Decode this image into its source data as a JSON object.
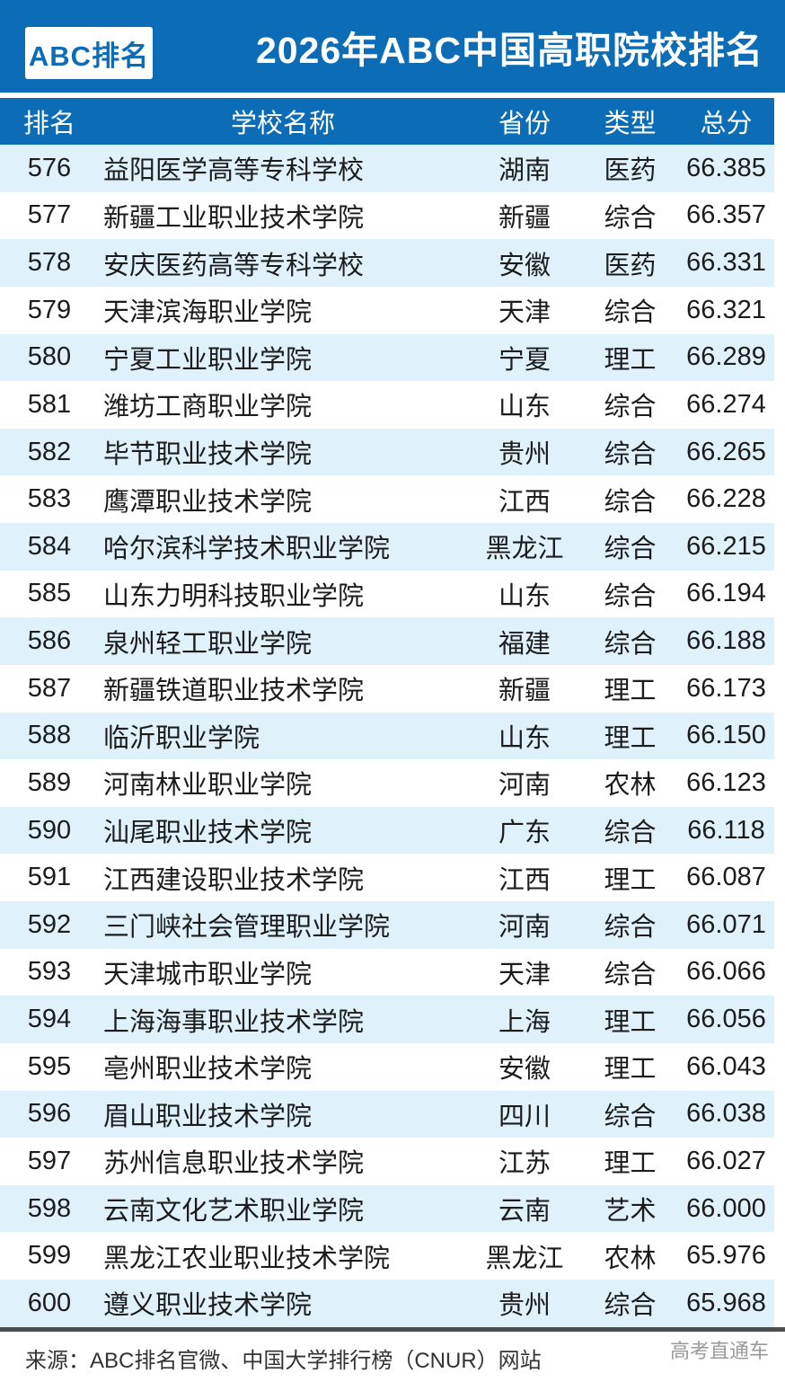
{
  "banner": {
    "logo": "ABC排名",
    "title": "2026年ABC中国高职院校排名"
  },
  "colors": {
    "primary_blue": "#0c6cb5",
    "row_alt_blue": "#dff2fb",
    "separator_gray": "#4e4e4e",
    "watermark_gray": "#9a9a9a"
  },
  "table": {
    "columns": {
      "rank": "排名",
      "name": "学校名称",
      "province": "省份",
      "type": "类型",
      "score": "总分"
    },
    "rows": [
      {
        "rank": "576",
        "name": "益阳医学高等专科学校",
        "province": "湖南",
        "type": "医药",
        "score": "66.385"
      },
      {
        "rank": "577",
        "name": "新疆工业职业技术学院",
        "province": "新疆",
        "type": "综合",
        "score": "66.357"
      },
      {
        "rank": "578",
        "name": "安庆医药高等专科学校",
        "province": "安徽",
        "type": "医药",
        "score": "66.331"
      },
      {
        "rank": "579",
        "name": "天津滨海职业学院",
        "province": "天津",
        "type": "综合",
        "score": "66.321"
      },
      {
        "rank": "580",
        "name": "宁夏工业职业学院",
        "province": "宁夏",
        "type": "理工",
        "score": "66.289"
      },
      {
        "rank": "581",
        "name": "潍坊工商职业学院",
        "province": "山东",
        "type": "综合",
        "score": "66.274"
      },
      {
        "rank": "582",
        "name": "毕节职业技术学院",
        "province": "贵州",
        "type": "综合",
        "score": "66.265"
      },
      {
        "rank": "583",
        "name": "鹰潭职业技术学院",
        "province": "江西",
        "type": "综合",
        "score": "66.228"
      },
      {
        "rank": "584",
        "name": "哈尔滨科学技术职业学院",
        "province": "黑龙江",
        "type": "综合",
        "score": "66.215"
      },
      {
        "rank": "585",
        "name": "山东力明科技职业学院",
        "province": "山东",
        "type": "综合",
        "score": "66.194"
      },
      {
        "rank": "586",
        "name": "泉州轻工职业学院",
        "province": "福建",
        "type": "综合",
        "score": "66.188"
      },
      {
        "rank": "587",
        "name": "新疆铁道职业技术学院",
        "province": "新疆",
        "type": "理工",
        "score": "66.173"
      },
      {
        "rank": "588",
        "name": "临沂职业学院",
        "province": "山东",
        "type": "理工",
        "score": "66.150"
      },
      {
        "rank": "589",
        "name": "河南林业职业学院",
        "province": "河南",
        "type": "农林",
        "score": "66.123"
      },
      {
        "rank": "590",
        "name": "汕尾职业技术学院",
        "province": "广东",
        "type": "综合",
        "score": "66.118"
      },
      {
        "rank": "591",
        "name": "江西建设职业技术学院",
        "province": "江西",
        "type": "理工",
        "score": "66.087"
      },
      {
        "rank": "592",
        "name": "三门峡社会管理职业学院",
        "province": "河南",
        "type": "综合",
        "score": "66.071"
      },
      {
        "rank": "593",
        "name": "天津城市职业学院",
        "province": "天津",
        "type": "综合",
        "score": "66.066"
      },
      {
        "rank": "594",
        "name": "上海海事职业技术学院",
        "province": "上海",
        "type": "理工",
        "score": "66.056"
      },
      {
        "rank": "595",
        "name": "亳州职业技术学院",
        "province": "安徽",
        "type": "理工",
        "score": "66.043"
      },
      {
        "rank": "596",
        "name": "眉山职业技术学院",
        "province": "四川",
        "type": "综合",
        "score": "66.038"
      },
      {
        "rank": "597",
        "name": "苏州信息职业技术学院",
        "province": "江苏",
        "type": "理工",
        "score": "66.027"
      },
      {
        "rank": "598",
        "name": "云南文化艺术职业学院",
        "province": "云南",
        "type": "艺术",
        "score": "66.000"
      },
      {
        "rank": "599",
        "name": "黑龙江农业职业技术学院",
        "province": "黑龙江",
        "type": "农林",
        "score": "65.976"
      },
      {
        "rank": "600",
        "name": "遵义职业技术学院",
        "province": "贵州",
        "type": "综合",
        "score": "65.968"
      }
    ]
  },
  "footer": {
    "source": "来源：ABC排名官微、中国大学排行榜（CNUR）网站",
    "watermark": "高考直通车"
  }
}
